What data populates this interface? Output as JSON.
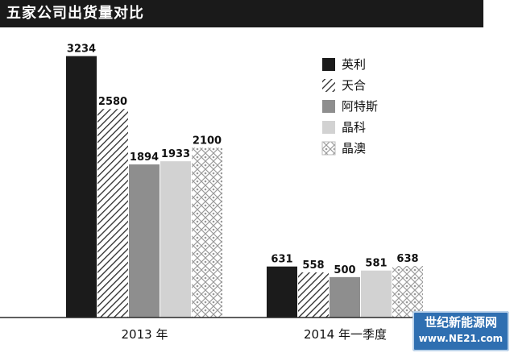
{
  "chart_data": {
    "type": "bar",
    "title": "五家公司出货量对比",
    "categories": [
      "2013 年",
      "2014 年一季度"
    ],
    "series": [
      {
        "name": "英利",
        "values": [
          3234,
          631
        ],
        "pattern": "solid-black"
      },
      {
        "name": "天合",
        "values": [
          2580,
          558
        ],
        "pattern": "diagonal-hatch"
      },
      {
        "name": "阿特斯",
        "values": [
          1894,
          500
        ],
        "pattern": "solid-gray"
      },
      {
        "name": "晶科",
        "values": [
          1933,
          581
        ],
        "pattern": "solid-light"
      },
      {
        "name": "晶澳",
        "values": [
          2100,
          638
        ],
        "pattern": "dotted"
      }
    ],
    "data_labels": [
      [
        "3234",
        "2580",
        "1894",
        "1933",
        "2100"
      ],
      [
        "631",
        "558",
        "500",
        "581",
        "638"
      ]
    ],
    "xlabel": "",
    "ylabel": "",
    "ylim": [
      0,
      3330
    ],
    "legend_position": "top-right",
    "grid": false
  },
  "watermark": {
    "line1": "世纪新能源网",
    "line2": "www.NE21.com"
  },
  "colors": {
    "black": "#1b1b1b",
    "gray": "#8e8e8e",
    "light": "#d2d2d2",
    "hatch": "#2a2a2a",
    "dot": "#7a7a7a",
    "axis": "#2a2a2a",
    "watermark_bg": "#2f6fb1"
  }
}
